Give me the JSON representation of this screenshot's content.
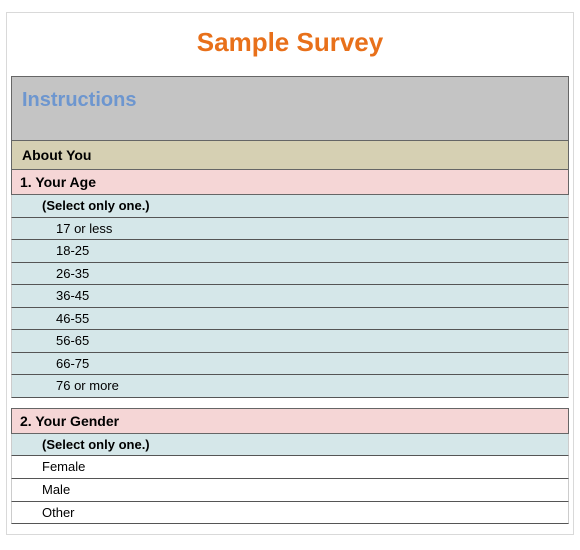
{
  "title": {
    "text": "Sample Survey",
    "color": "#e8701a",
    "fontsize": 26
  },
  "instructions": {
    "label": "Instructions",
    "bg": "#c4c4c4",
    "color": "#6d96cf",
    "fontsize": 20
  },
  "about": {
    "label": "About You",
    "bg": "#d6d0b3",
    "fontsize": 14
  },
  "q1": {
    "label": "1. Your Age",
    "bg": "#f5d6d6",
    "hint": "(Select only one.)",
    "options_bg": "#d5e7e9",
    "options": [
      "17 or less",
      "18-25",
      "26-35",
      "36-45",
      "46-55",
      "56-65",
      "66-75",
      "76 or more"
    ]
  },
  "q2": {
    "label": "2. Your Gender",
    "bg": "#f5d6d6",
    "hint": "(Select only one.)",
    "hint_bg": "#d5e7e9",
    "options_bg": "#ffffff",
    "options": [
      "Female",
      "Male",
      "Other"
    ]
  },
  "colors": {
    "border": "#666666",
    "row_border": "#555555",
    "outer_border": "#d9d9d9"
  }
}
